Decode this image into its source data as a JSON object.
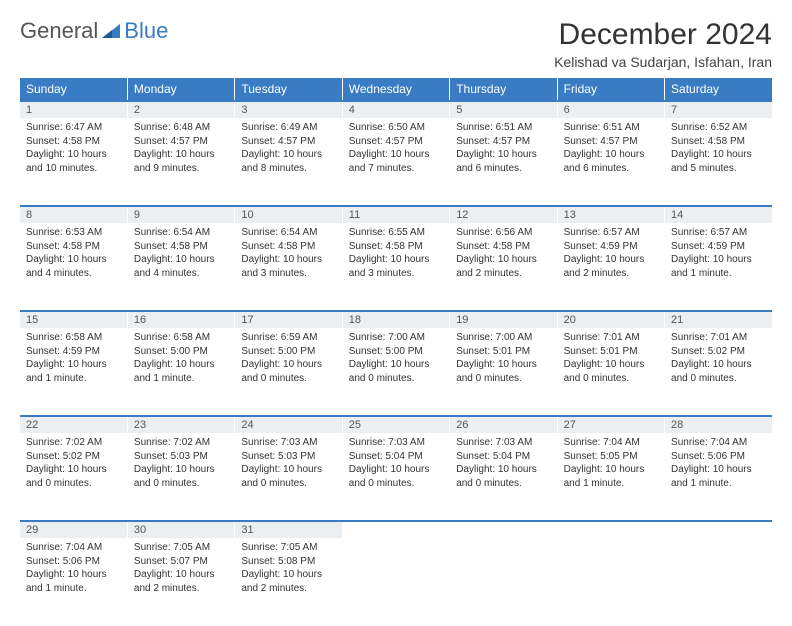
{
  "logo": {
    "part1": "General",
    "part2": "Blue"
  },
  "title": "December 2024",
  "location": "Kelishad va Sudarjan, Isfahan, Iran",
  "colors": {
    "header_bg": "#3a7cc4",
    "header_fg": "#ffffff",
    "daynum_bg": "#eceff1",
    "border_accent": "#3a7cc4",
    "text": "#333333"
  },
  "weekdays": [
    "Sunday",
    "Monday",
    "Tuesday",
    "Wednesday",
    "Thursday",
    "Friday",
    "Saturday"
  ],
  "weeks": [
    [
      {
        "day": "1",
        "sunrise": "Sunrise: 6:47 AM",
        "sunset": "Sunset: 4:58 PM",
        "daylight": "Daylight: 10 hours and 10 minutes."
      },
      {
        "day": "2",
        "sunrise": "Sunrise: 6:48 AM",
        "sunset": "Sunset: 4:57 PM",
        "daylight": "Daylight: 10 hours and 9 minutes."
      },
      {
        "day": "3",
        "sunrise": "Sunrise: 6:49 AM",
        "sunset": "Sunset: 4:57 PM",
        "daylight": "Daylight: 10 hours and 8 minutes."
      },
      {
        "day": "4",
        "sunrise": "Sunrise: 6:50 AM",
        "sunset": "Sunset: 4:57 PM",
        "daylight": "Daylight: 10 hours and 7 minutes."
      },
      {
        "day": "5",
        "sunrise": "Sunrise: 6:51 AM",
        "sunset": "Sunset: 4:57 PM",
        "daylight": "Daylight: 10 hours and 6 minutes."
      },
      {
        "day": "6",
        "sunrise": "Sunrise: 6:51 AM",
        "sunset": "Sunset: 4:57 PM",
        "daylight": "Daylight: 10 hours and 6 minutes."
      },
      {
        "day": "7",
        "sunrise": "Sunrise: 6:52 AM",
        "sunset": "Sunset: 4:58 PM",
        "daylight": "Daylight: 10 hours and 5 minutes."
      }
    ],
    [
      {
        "day": "8",
        "sunrise": "Sunrise: 6:53 AM",
        "sunset": "Sunset: 4:58 PM",
        "daylight": "Daylight: 10 hours and 4 minutes."
      },
      {
        "day": "9",
        "sunrise": "Sunrise: 6:54 AM",
        "sunset": "Sunset: 4:58 PM",
        "daylight": "Daylight: 10 hours and 4 minutes."
      },
      {
        "day": "10",
        "sunrise": "Sunrise: 6:54 AM",
        "sunset": "Sunset: 4:58 PM",
        "daylight": "Daylight: 10 hours and 3 minutes."
      },
      {
        "day": "11",
        "sunrise": "Sunrise: 6:55 AM",
        "sunset": "Sunset: 4:58 PM",
        "daylight": "Daylight: 10 hours and 3 minutes."
      },
      {
        "day": "12",
        "sunrise": "Sunrise: 6:56 AM",
        "sunset": "Sunset: 4:58 PM",
        "daylight": "Daylight: 10 hours and 2 minutes."
      },
      {
        "day": "13",
        "sunrise": "Sunrise: 6:57 AM",
        "sunset": "Sunset: 4:59 PM",
        "daylight": "Daylight: 10 hours and 2 minutes."
      },
      {
        "day": "14",
        "sunrise": "Sunrise: 6:57 AM",
        "sunset": "Sunset: 4:59 PM",
        "daylight": "Daylight: 10 hours and 1 minute."
      }
    ],
    [
      {
        "day": "15",
        "sunrise": "Sunrise: 6:58 AM",
        "sunset": "Sunset: 4:59 PM",
        "daylight": "Daylight: 10 hours and 1 minute."
      },
      {
        "day": "16",
        "sunrise": "Sunrise: 6:58 AM",
        "sunset": "Sunset: 5:00 PM",
        "daylight": "Daylight: 10 hours and 1 minute."
      },
      {
        "day": "17",
        "sunrise": "Sunrise: 6:59 AM",
        "sunset": "Sunset: 5:00 PM",
        "daylight": "Daylight: 10 hours and 0 minutes."
      },
      {
        "day": "18",
        "sunrise": "Sunrise: 7:00 AM",
        "sunset": "Sunset: 5:00 PM",
        "daylight": "Daylight: 10 hours and 0 minutes."
      },
      {
        "day": "19",
        "sunrise": "Sunrise: 7:00 AM",
        "sunset": "Sunset: 5:01 PM",
        "daylight": "Daylight: 10 hours and 0 minutes."
      },
      {
        "day": "20",
        "sunrise": "Sunrise: 7:01 AM",
        "sunset": "Sunset: 5:01 PM",
        "daylight": "Daylight: 10 hours and 0 minutes."
      },
      {
        "day": "21",
        "sunrise": "Sunrise: 7:01 AM",
        "sunset": "Sunset: 5:02 PM",
        "daylight": "Daylight: 10 hours and 0 minutes."
      }
    ],
    [
      {
        "day": "22",
        "sunrise": "Sunrise: 7:02 AM",
        "sunset": "Sunset: 5:02 PM",
        "daylight": "Daylight: 10 hours and 0 minutes."
      },
      {
        "day": "23",
        "sunrise": "Sunrise: 7:02 AM",
        "sunset": "Sunset: 5:03 PM",
        "daylight": "Daylight: 10 hours and 0 minutes."
      },
      {
        "day": "24",
        "sunrise": "Sunrise: 7:03 AM",
        "sunset": "Sunset: 5:03 PM",
        "daylight": "Daylight: 10 hours and 0 minutes."
      },
      {
        "day": "25",
        "sunrise": "Sunrise: 7:03 AM",
        "sunset": "Sunset: 5:04 PM",
        "daylight": "Daylight: 10 hours and 0 minutes."
      },
      {
        "day": "26",
        "sunrise": "Sunrise: 7:03 AM",
        "sunset": "Sunset: 5:04 PM",
        "daylight": "Daylight: 10 hours and 0 minutes."
      },
      {
        "day": "27",
        "sunrise": "Sunrise: 7:04 AM",
        "sunset": "Sunset: 5:05 PM",
        "daylight": "Daylight: 10 hours and 1 minute."
      },
      {
        "day": "28",
        "sunrise": "Sunrise: 7:04 AM",
        "sunset": "Sunset: 5:06 PM",
        "daylight": "Daylight: 10 hours and 1 minute."
      }
    ],
    [
      {
        "day": "29",
        "sunrise": "Sunrise: 7:04 AM",
        "sunset": "Sunset: 5:06 PM",
        "daylight": "Daylight: 10 hours and 1 minute."
      },
      {
        "day": "30",
        "sunrise": "Sunrise: 7:05 AM",
        "sunset": "Sunset: 5:07 PM",
        "daylight": "Daylight: 10 hours and 2 minutes."
      },
      {
        "day": "31",
        "sunrise": "Sunrise: 7:05 AM",
        "sunset": "Sunset: 5:08 PM",
        "daylight": "Daylight: 10 hours and 2 minutes."
      },
      null,
      null,
      null,
      null
    ]
  ]
}
